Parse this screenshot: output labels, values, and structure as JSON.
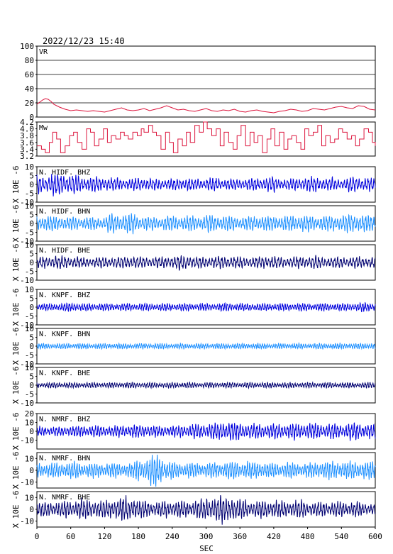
{
  "page": {
    "timestamp": "2022/12/23  15:40"
  },
  "chart_data": {
    "type": "line",
    "xlabel": "SEC",
    "xlim": [
      0,
      600
    ],
    "xticks": [
      0,
      60,
      120,
      180,
      240,
      300,
      360,
      420,
      480,
      540,
      600
    ],
    "grid": false,
    "colors": {
      "vr": "#dc143c",
      "mw": "#dc143c",
      "bhz": "#0000dd",
      "bhn": "#1e90ff",
      "bhe": "#000070"
    },
    "panels": [
      {
        "label": "VR",
        "ylabel": "",
        "ylim": [
          0,
          100
        ],
        "yticks": [
          0,
          20,
          40,
          60,
          80,
          100
        ],
        "hgrid": true,
        "kind": "vr",
        "color": "#dc143c",
        "series": {
          "name": "VR",
          "x": [
            0,
            5,
            10,
            15,
            20,
            25,
            30,
            40,
            50,
            60,
            70,
            80,
            90,
            100,
            110,
            120,
            130,
            140,
            150,
            160,
            170,
            180,
            190,
            200,
            210,
            220,
            230,
            240,
            250,
            260,
            270,
            280,
            290,
            300,
            310,
            320,
            330,
            340,
            350,
            360,
            370,
            380,
            390,
            400,
            410,
            420,
            430,
            440,
            450,
            460,
            470,
            480,
            490,
            500,
            510,
            520,
            530,
            540,
            550,
            560,
            570,
            580,
            590,
            600
          ],
          "y": [
            18,
            21,
            24,
            26,
            25,
            22,
            18,
            14,
            11,
            9,
            10,
            9,
            8,
            9,
            8,
            7,
            9,
            11,
            13,
            10,
            9,
            10,
            12,
            9,
            11,
            13,
            16,
            13,
            10,
            11,
            9,
            8,
            10,
            12,
            9,
            8,
            10,
            9,
            11,
            8,
            7,
            9,
            10,
            8,
            7,
            6,
            8,
            9,
            11,
            10,
            8,
            9,
            12,
            11,
            10,
            12,
            14,
            15,
            13,
            12,
            16,
            15,
            11,
            10
          ]
        }
      },
      {
        "label": "Mw",
        "ylabel": "",
        "ylim": [
          3.2,
          4.2
        ],
        "yticks": [
          3.2,
          3.4,
          3.6,
          3.8,
          4.0,
          4.2
        ],
        "hgrid": false,
        "kind": "mw",
        "color": "#dc143c",
        "series": {
          "name": "Mw",
          "x": [
            0,
            8,
            15,
            22,
            28,
            35,
            42,
            50,
            58,
            65,
            72,
            80,
            88,
            95,
            102,
            110,
            118,
            125,
            132,
            140,
            148,
            155,
            162,
            170,
            178,
            185,
            190,
            198,
            205,
            212,
            220,
            228,
            235,
            242,
            250,
            258,
            265,
            272,
            280,
            288,
            295,
            302,
            310,
            318,
            325,
            332,
            340,
            348,
            355,
            362,
            370,
            378,
            385,
            392,
            400,
            408,
            415,
            422,
            430,
            438,
            445,
            452,
            460,
            468,
            475,
            482,
            490,
            498,
            505,
            512,
            520,
            528,
            535,
            542,
            550,
            558,
            565,
            572,
            580,
            588,
            595,
            600
          ],
          "y": [
            3.5,
            3.4,
            3.3,
            3.6,
            3.9,
            3.7,
            3.3,
            3.5,
            3.8,
            3.9,
            3.6,
            3.4,
            4.0,
            3.9,
            3.5,
            3.7,
            4.0,
            3.6,
            3.8,
            3.7,
            3.9,
            3.8,
            3.7,
            3.9,
            3.8,
            4.0,
            3.9,
            4.1,
            3.9,
            3.8,
            3.4,
            3.9,
            3.6,
            3.3,
            3.7,
            3.5,
            3.9,
            3.6,
            4.1,
            3.9,
            4.2,
            4.0,
            3.8,
            4.0,
            3.5,
            3.9,
            3.6,
            3.4,
            3.8,
            4.1,
            3.5,
            3.9,
            3.6,
            3.8,
            3.3,
            3.7,
            4.0,
            3.5,
            3.9,
            3.4,
            3.7,
            3.8,
            3.6,
            3.4,
            4.0,
            3.8,
            3.9,
            4.1,
            3.5,
            3.8,
            3.6,
            3.7,
            4.0,
            3.9,
            3.7,
            3.8,
            3.5,
            3.7,
            4.0,
            3.9,
            3.6,
            3.5
          ]
        }
      },
      {
        "label": "N. HIDF. BHZ",
        "ylabel": "X 10E -6",
        "ylim": [
          -10,
          10
        ],
        "yticks": [
          -10,
          -5,
          0,
          5,
          10
        ],
        "kind": "wave",
        "color": "#0000dd",
        "envelope": [
          5,
          6,
          5,
          4,
          4,
          3.5,
          3,
          3.5,
          3,
          3,
          3.5,
          3,
          3.5,
          3,
          3,
          3.5,
          4,
          3,
          3.5,
          4,
          3.5,
          3,
          4,
          3.5
        ],
        "freq": 0.42,
        "seed": 11
      },
      {
        "label": "N. HIDF. BHN",
        "ylabel": "X 10E -6",
        "ylim": [
          -10,
          10
        ],
        "yticks": [
          -10,
          -5,
          0,
          5,
          10
        ],
        "kind": "wave",
        "color": "#1e90ff",
        "envelope": [
          4,
          4,
          3.5,
          3.5,
          3.5,
          5,
          5.5,
          4,
          3.5,
          4,
          4,
          4,
          4.5,
          4,
          3.5,
          4,
          4,
          4,
          4.5,
          4,
          4,
          4.5,
          5,
          4.5
        ],
        "freq": 0.45,
        "seed": 23
      },
      {
        "label": "N. HIDF. BHE",
        "ylabel": "X 10E -6",
        "ylim": [
          -10,
          10
        ],
        "yticks": [
          -10,
          -5,
          0,
          5,
          10
        ],
        "kind": "wave",
        "color": "#000070",
        "envelope": [
          3,
          3.5,
          3,
          2.5,
          3,
          3,
          3.5,
          3,
          3,
          3.5,
          4,
          3,
          3,
          3.5,
          3,
          3,
          3.5,
          3,
          3,
          3.5,
          3,
          3,
          3,
          3
        ],
        "freq": 0.4,
        "seed": 37
      },
      {
        "label": "N. KNPF. BHZ",
        "ylabel": "X 10E -6",
        "ylim": [
          -10,
          10
        ],
        "yticks": [
          -10,
          -5,
          0,
          5,
          10
        ],
        "kind": "wave",
        "color": "#0000dd",
        "envelope": [
          1.8,
          2,
          2.5,
          2,
          2,
          2,
          2,
          2,
          2,
          2,
          2,
          2,
          2,
          2.2,
          2,
          2,
          2,
          2,
          2,
          2,
          2,
          2,
          2.2,
          2.5
        ],
        "freq": 0.5,
        "seed": 41
      },
      {
        "label": "N. KNPF. BHN",
        "ylabel": "X 10E -6",
        "ylim": [
          -10,
          10
        ],
        "yticks": [
          -10,
          -5,
          0,
          5,
          10
        ],
        "kind": "wave",
        "color": "#1e90ff",
        "envelope": [
          1.5,
          1.5,
          1.5,
          1.5,
          1.5,
          1.5,
          1.5,
          1.5,
          1.5,
          1.5,
          1.5,
          1.5,
          1.5,
          1.5,
          1.5,
          1.5,
          1.5,
          1.5,
          1.5,
          1.5,
          1.6,
          1.6,
          1.6,
          1.6
        ],
        "freq": 0.55,
        "seed": 53
      },
      {
        "label": "N. KNPF. BHE",
        "ylabel": "X 10E -6",
        "ylim": [
          -10,
          10
        ],
        "yticks": [
          -10,
          -5,
          0,
          5,
          10
        ],
        "kind": "wave",
        "color": "#000070",
        "envelope": [
          1.5,
          1.5,
          1.5,
          1.5,
          1.5,
          1.5,
          1.5,
          1.5,
          1.5,
          1.5,
          1.5,
          1.5,
          1.5,
          1.5,
          1.5,
          1.5,
          1.5,
          1.5,
          1.5,
          1.5,
          1.5,
          1.5,
          1.5,
          1.5
        ],
        "freq": 0.5,
        "seed": 67
      },
      {
        "label": "N. NMRF. BHZ",
        "ylabel": "X 10E -6",
        "ylim": [
          -20,
          20
        ],
        "yticks": [
          -10,
          0,
          10,
          20
        ],
        "kind": "wave",
        "color": "#0000dd",
        "envelope": [
          5,
          5,
          6,
          6,
          6,
          6,
          7,
          7,
          6,
          6,
          7,
          8,
          9,
          11,
          9,
          8,
          8,
          8,
          9,
          9,
          8,
          8,
          9,
          8
        ],
        "freq": 0.45,
        "seed": 71
      },
      {
        "label": "N. NMRF. BHN",
        "ylabel": "X 10E -6",
        "ylim": [
          -15,
          15
        ],
        "yticks": [
          -10,
          0,
          10
        ],
        "kind": "wave",
        "color": "#1e90ff",
        "envelope": [
          6,
          6,
          7,
          6,
          6,
          6,
          6,
          9,
          12,
          7,
          6,
          6,
          6,
          7,
          7,
          7,
          6,
          6,
          6,
          6,
          7,
          7,
          7,
          7
        ],
        "freq": 0.5,
        "seed": 83
      },
      {
        "label": "N. NMRF. BHE",
        "ylabel": "X 10E -6",
        "ylim": [
          -15,
          15
        ],
        "yticks": [
          -10,
          0,
          10
        ],
        "kind": "wave",
        "color": "#000070",
        "envelope": [
          6,
          6,
          7,
          8,
          7,
          9,
          10,
          7,
          6,
          7,
          7,
          8,
          10,
          11,
          8,
          7,
          7,
          7,
          7,
          6,
          6,
          6,
          6,
          5
        ],
        "freq": 0.45,
        "seed": 97
      }
    ]
  }
}
